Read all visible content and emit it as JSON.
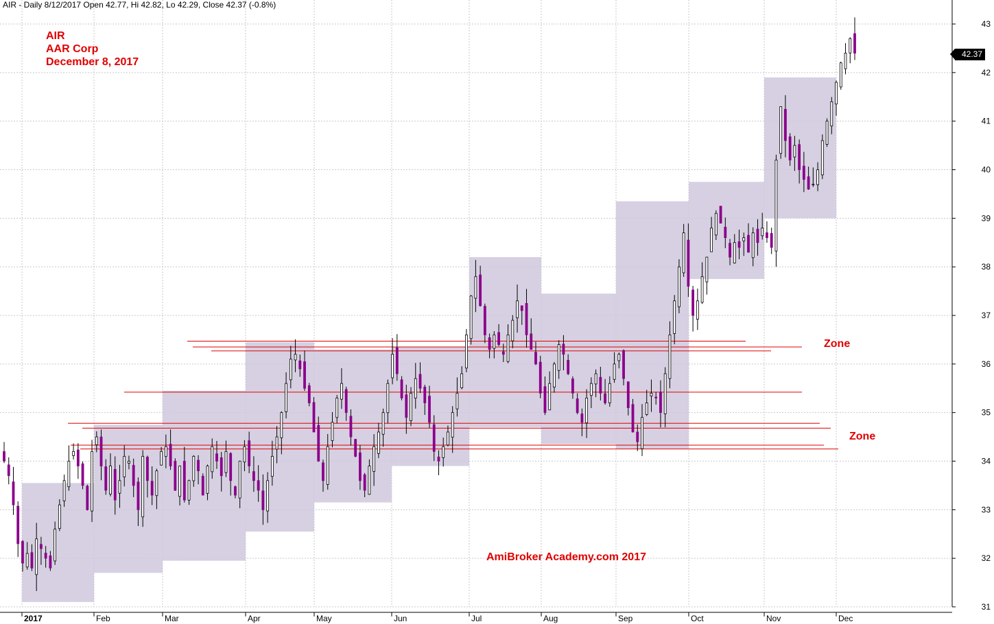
{
  "header": {
    "text": "AIR - Daily 8/12/2017 Open 42.77, Hi 42.82, Lo 42.29, Close 42.37 (-0.8%)"
  },
  "title_lines": [
    "AIR",
    "AAR Corp",
    "December 8, 2017"
  ],
  "zone_labels": [
    "Zone",
    "Zone"
  ],
  "watermark": "AmiBroker Academy.com  2017",
  "last_price_label": "42.37",
  "colors": {
    "zone_fill": "#cfc8dd",
    "up_candle": "#ffffff",
    "down_candle": "#8b008b",
    "support_line": "#e00000",
    "grid": "#c8c8c8",
    "text_red": "#e00000"
  },
  "chart_data": {
    "type": "candlestick",
    "title": "AIR - Daily 8/12/2017 Open 42.77, Hi 42.82, Lo 42.29, Close 42.37 (-0.8%)",
    "ylim": [
      30.9,
      43.2
    ],
    "y_ticks": [
      31,
      32,
      33,
      34,
      35,
      36,
      37,
      38,
      39,
      40,
      41,
      42,
      43
    ],
    "x_ticks": [
      "2017",
      "Feb",
      "Mar",
      "Apr",
      "May",
      "Jun",
      "Jul",
      "Aug",
      "Sep",
      "Oct",
      "Nov",
      "Dec"
    ],
    "grid": true,
    "last": {
      "open": 42.77,
      "high": 42.82,
      "low": 42.29,
      "close": 42.37,
      "change_pct": -0.8
    },
    "monthly_boxes": [
      {
        "month": "Jan",
        "low": 31.1,
        "high": 33.55
      },
      {
        "month": "Feb",
        "low": 31.7,
        "high": 34.75
      },
      {
        "month": "Mar",
        "low": 31.95,
        "high": 35.45
      },
      {
        "month": "Apr",
        "low": 32.55,
        "high": 36.45
      },
      {
        "month": "May",
        "low": 33.15,
        "high": 36.3
      },
      {
        "month": "Jun",
        "low": 33.9,
        "high": 36.35
      },
      {
        "month": "Jul",
        "low": 34.7,
        "high": 38.2
      },
      {
        "month": "Aug",
        "low": 34.35,
        "high": 37.45
      },
      {
        "month": "Sep",
        "low": 34.25,
        "high": 39.35
      },
      {
        "month": "Oct",
        "low": 37.75,
        "high": 39.75
      },
      {
        "month": "Nov",
        "low": 39.0,
        "high": 41.9
      }
    ],
    "horizontal_lines": [
      {
        "level": 36.47,
        "from": "Apr",
        "to": "Oct"
      },
      {
        "level": 36.35,
        "from": "Apr",
        "to": "Nov"
      },
      {
        "level": 36.27,
        "from": "Apr",
        "to": "Oct"
      },
      {
        "level": 35.42,
        "from": "Feb",
        "to": "Nov"
      },
      {
        "level": 34.78,
        "from": "Jan",
        "to": "Nov"
      },
      {
        "level": 34.68,
        "from": "Jan",
        "to": "Dec"
      },
      {
        "level": 34.33,
        "from": "Jan",
        "to": "Nov"
      },
      {
        "level": 34.25,
        "from": "Jan",
        "to": "Dec"
      }
    ],
    "candle_anchors": [
      34.0,
      33.7,
      33.1,
      32.3,
      31.9,
      32.1,
      31.8,
      32.4,
      32.2,
      32.0,
      31.8,
      32.6,
      33.1,
      33.6,
      34.0,
      34.2,
      33.9,
      33.5,
      33.0,
      34.2,
      34.5,
      33.9,
      33.4,
      33.9,
      33.2,
      33.6,
      34.1,
      34.0,
      33.5,
      33.0,
      34.1,
      33.6,
      33.3,
      33.8,
      34.2,
      34.3,
      33.9,
      33.4,
      33.9,
      33.2,
      33.6,
      34.1,
      33.8,
      33.3,
      33.9,
      34.3,
      34.0,
      33.7,
      34.2,
      33.6,
      33.3,
      34.0,
      34.3,
      33.9,
      33.6,
      33.4,
      33.0,
      33.6,
      34.1,
      34.5,
      35.0,
      35.6,
      36.1,
      36.2,
      35.9,
      35.5,
      35.2,
      34.6,
      34.0,
      33.6,
      34.3,
      34.8,
      35.3,
      35.6,
      35.0,
      34.5,
      34.1,
      33.6,
      33.4,
      33.9,
      34.3,
      34.6,
      35.0,
      35.6,
      36.2,
      35.8,
      35.3,
      34.9,
      35.4,
      35.7,
      35.5,
      35.2,
      34.8,
      34.2,
      34.0,
      34.3,
      34.6,
      35.0,
      35.4,
      35.8,
      36.6,
      37.4,
      37.8,
      37.2,
      36.6,
      36.3,
      36.6,
      36.4,
      36.2,
      36.6,
      36.9,
      37.3,
      37.1,
      36.6,
      36.3,
      36.0,
      35.4,
      35.0,
      35.6,
      36.0,
      36.4,
      36.2,
      35.8,
      35.4,
      35.0,
      34.8,
      35.3,
      35.6,
      35.8,
      35.4,
      35.2,
      35.6,
      36.0,
      36.2,
      35.7,
      35.1,
      34.6,
      34.4,
      34.9,
      35.2,
      35.4,
      35.3,
      35.0,
      35.8,
      36.6,
      37.3,
      38.0,
      38.7,
      37.6,
      37.0,
      37.3,
      37.8,
      38.2,
      38.8,
      39.1,
      38.9,
      38.6,
      38.2,
      38.5,
      38.4,
      38.6,
      38.3,
      38.7,
      38.5,
      38.8,
      38.6,
      38.4,
      40.2,
      41.3,
      40.6,
      40.2,
      40.5,
      40.0,
      39.8,
      39.6,
      39.7,
      40.0,
      40.6,
      41.0,
      41.4,
      41.8,
      42.2,
      42.4,
      42.7,
      42.4
    ]
  }
}
